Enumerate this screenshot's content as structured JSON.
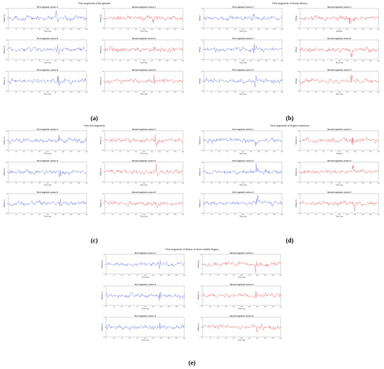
{
  "figure": {
    "caption_labels": [
      "(a)",
      "(b)",
      "(c)",
      "(d)",
      "(e)"
    ]
  },
  "colors": {
    "sensor_blue": "#4a55d6",
    "sensor_red": "#e0454f",
    "axis": "#555555"
  },
  "chart_data": [
    {
      "type": "line",
      "panel": "(a)",
      "title": "First segments of fist gesture",
      "subplots": [
        {
          "title": "First segment, sensor 1",
          "xlabel": "Time (ms)",
          "ylabel": "Voltage (v)",
          "color": "blue"
        },
        {
          "title": "Second segment, sensor 1",
          "xlabel": "Time (ms)",
          "ylabel": "Voltage (v)",
          "color": "red"
        },
        {
          "title": "First segment, sensor 2",
          "xlabel": "Time (ms)",
          "ylabel": "Voltage (v)",
          "color": "blue"
        },
        {
          "title": "Second segment, sensor 2",
          "xlabel": "Time (ms)",
          "ylabel": "Voltage (v)",
          "color": "red"
        },
        {
          "title": "First segment, sensor 3",
          "xlabel": "Time (ms)",
          "ylabel": "Voltage (v)",
          "color": "blue"
        },
        {
          "title": "Second segment, sensor 3",
          "xlabel": "Time (ms)",
          "ylabel": "Voltage (v)",
          "color": "red"
        }
      ],
      "xticks": [
        0,
        20,
        40,
        60,
        80,
        100,
        120,
        140,
        160,
        180,
        200
      ],
      "xlim": [
        0,
        200
      ],
      "ylim": [
        -0.5,
        0.5
      ],
      "yticks": [
        "0.5",
        "0",
        "-0.5"
      ],
      "grid": true
    },
    {
      "type": "line",
      "panel": "(b)",
      "title": "First segments of thumb flexion",
      "subplots": [
        {
          "title": "First segment, sensor 1",
          "xlabel": "Time (ms)",
          "ylabel": "Voltage",
          "color": "blue"
        },
        {
          "title": "Second segment, sensor 1",
          "xlabel": "Samples",
          "ylabel": "Voltage",
          "color": "red"
        },
        {
          "title": "First segment, sensor 2",
          "xlabel": "Time (ms)",
          "ylabel": "Voltage",
          "color": "blue"
        },
        {
          "title": "Second segment, sensor 2",
          "xlabel": "Time (ms)",
          "ylabel": "Voltage",
          "color": "red"
        },
        {
          "title": "First segment, sensor 3",
          "xlabel": "Time (ms)",
          "ylabel": "Voltage",
          "color": "blue"
        },
        {
          "title": "Second segment, sensor 3",
          "xlabel": "Time (ms)",
          "ylabel": "Voltage",
          "color": "red"
        }
      ],
      "xticks": [
        0,
        20,
        40,
        60,
        80,
        100,
        120,
        140,
        160,
        180,
        200
      ],
      "xlim": [
        0,
        200
      ],
      "ylim": [
        -0.5,
        0.5
      ],
      "yticks": [
        "0.5",
        "0",
        "-0.5"
      ],
      "grid": true
    },
    {
      "type": "line",
      "panel": "(c)",
      "title": "First rest segments",
      "subplots": [
        {
          "title": "First segment, sensor 1",
          "xlabel": "Time (ms)",
          "ylabel": "Voltage (v)",
          "color": "blue"
        },
        {
          "title": "Second segment, sensor 1",
          "xlabel": "Time (ms)",
          "ylabel": "Voltage (v)",
          "color": "red"
        },
        {
          "title": "First segment, sensor 2",
          "xlabel": "Time (ms)",
          "ylabel": "Voltage (v)",
          "color": "blue"
        },
        {
          "title": "Second segment, sensor 2",
          "xlabel": "Time (ms)",
          "ylabel": "Voltage (v)",
          "color": "red"
        },
        {
          "title": "First segment, sensor 3",
          "xlabel": "Time (ms)",
          "ylabel": "Voltage (v)",
          "color": "blue"
        },
        {
          "title": "Second segment, sensor 3",
          "xlabel": "Time (ms)",
          "ylabel": "Voltage (v)",
          "color": "red"
        }
      ],
      "xticks": [
        0,
        20,
        40,
        60,
        80,
        100,
        120,
        140,
        160,
        180,
        200
      ],
      "xlim": [
        0,
        200
      ],
      "ylim": [
        -0.5,
        0.5
      ],
      "yticks": [
        "0.5",
        "0",
        "-0.5"
      ],
      "grid": true
    },
    {
      "type": "line",
      "panel": "(d)",
      "title": "First segments of fingers extension",
      "subplots": [
        {
          "title": "First segment, sensor 1",
          "xlabel": "Time (ms)",
          "ylabel": "Voltage (v)",
          "color": "blue"
        },
        {
          "title": "Second segment, sensor 1",
          "xlabel": "Samples",
          "ylabel": "Voltage (v)",
          "color": "red"
        },
        {
          "title": "First segment, sensor 2",
          "xlabel": "Time (ms)",
          "ylabel": "Voltage (v)",
          "color": "blue"
        },
        {
          "title": "Second segment, sensor 2",
          "xlabel": "Time (ms)",
          "ylabel": "Voltage (v)",
          "color": "red"
        },
        {
          "title": "First segment, sensor 3",
          "xlabel": "Time (ms)",
          "ylabel": "Voltage (v)",
          "color": "blue"
        },
        {
          "title": "Second segment, sensor 3",
          "xlabel": "Time (ms)",
          "ylabel": "Voltage (v)",
          "color": "red"
        }
      ],
      "xticks": [
        0,
        20,
        40,
        60,
        80,
        100,
        120,
        140,
        160,
        180,
        200
      ],
      "xlim": [
        0,
        200
      ],
      "ylim": [
        -0.5,
        0.5
      ],
      "yticks": [
        "0.5",
        "0",
        "-0.5"
      ],
      "grid": true
    },
    {
      "type": "line",
      "panel": "(e)",
      "title": "First segments of flexion of three middle fingers",
      "subplots": [
        {
          "title": "First segment, sensor 1",
          "xlabel": "Time (ms)",
          "ylabel": "Voltage (v)",
          "color": "blue"
        },
        {
          "title": "Second segment, sensor 1",
          "xlabel": "Time (ms)",
          "ylabel": "Voltage (v)",
          "color": "red"
        },
        {
          "title": "First segment, sensor 2",
          "xlabel": "Time (ms)",
          "ylabel": "Voltage (v)",
          "color": "blue"
        },
        {
          "title": "Second segment, sensor 2",
          "xlabel": "Time (ms)",
          "ylabel": "Voltage (v)",
          "color": "red"
        },
        {
          "title": "First segment, sensor 3",
          "xlabel": "Time (ms)",
          "ylabel": "Voltage (v)",
          "color": "blue"
        },
        {
          "title": "Second segment, sensor 3",
          "xlabel": "Time (ms)",
          "ylabel": "Voltage (v)",
          "color": "red"
        }
      ],
      "xticks": [
        0,
        20,
        40,
        60,
        80,
        100,
        120,
        140,
        160,
        180,
        200
      ],
      "xlim": [
        0,
        200
      ],
      "ylim": [
        -0.5,
        0.5
      ],
      "yticks": [
        "0.5",
        "0",
        "-0.5"
      ],
      "grid": true
    }
  ]
}
